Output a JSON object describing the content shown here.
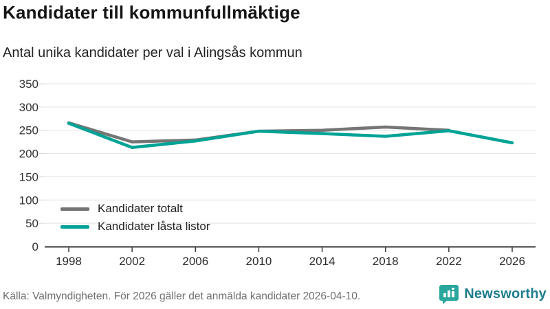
{
  "title": "Kandidater till kommunfullmäktige",
  "subtitle": "Antal unika kandidater per val i Alingsås kommun",
  "footer": {
    "source": "Källa: Valmyndigheten. För 2026 gäller det anmälda kandidater 2026-04-10.",
    "brand": "Newsworthy"
  },
  "colors": {
    "series_total": "#757575",
    "series_locked": "#00a396",
    "gridline": "#e3e3e3",
    "axis": "#3a3a3a",
    "tick_label": "#333333",
    "brand_teal": "#2aa79c",
    "brand_text": "#1f7d8d"
  },
  "chart_data": {
    "type": "line",
    "title": "Kandidater till kommunfullmäktige",
    "subtitle": "Antal unika kandidater per val i Alingsås kommun",
    "x": [
      1998,
      2002,
      2006,
      2010,
      2014,
      2018,
      2022,
      2026
    ],
    "series": [
      {
        "name": "Kandidater totalt",
        "color": "#757575",
        "values": [
          266,
          225,
          229,
          248,
          250,
          257,
          250,
          null
        ]
      },
      {
        "name": "Kandidater låsta listor",
        "color": "#00a396",
        "values": [
          265,
          213,
          227,
          248,
          243,
          237,
          249,
          223
        ]
      }
    ],
    "xlabel": "",
    "ylabel": "",
    "ylim": [
      0,
      350
    ],
    "yticks": [
      0,
      50,
      100,
      150,
      200,
      250,
      300,
      350
    ],
    "grid": true,
    "legend_position": "inside-bottom-left"
  }
}
